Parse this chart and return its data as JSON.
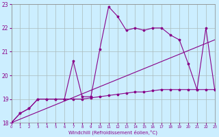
{
  "xlabel": "Windchill (Refroidissement éolien,°C)",
  "bg_color": "#cceeff",
  "grid_color": "#aabbbb",
  "line_color": "#880088",
  "xlim": [
    0,
    23
  ],
  "ylim": [
    18,
    23
  ],
  "xticks": [
    0,
    1,
    2,
    3,
    4,
    5,
    6,
    7,
    8,
    9,
    10,
    11,
    12,
    13,
    14,
    15,
    16,
    17,
    18,
    19,
    20,
    21,
    22,
    23
  ],
  "yticks": [
    18,
    19,
    20,
    21,
    22,
    23
  ],
  "series1_x": [
    0,
    1,
    2,
    3,
    4,
    5,
    6,
    7,
    8,
    9,
    10,
    11,
    12,
    13,
    14,
    15,
    16,
    17,
    18,
    19,
    20,
    21,
    22,
    23
  ],
  "series1_y": [
    18.0,
    18.4,
    18.6,
    19.0,
    19.0,
    19.0,
    19.0,
    20.6,
    19.1,
    19.1,
    21.1,
    22.9,
    22.5,
    21.9,
    22.0,
    21.9,
    22.0,
    22.0,
    21.7,
    21.5,
    20.5,
    19.4,
    22.0,
    19.4
  ],
  "series2_x": [
    0,
    1,
    2,
    3,
    4,
    5,
    6,
    7,
    8,
    9,
    10,
    11,
    12,
    13,
    14,
    15,
    16,
    17,
    18,
    19,
    20,
    21,
    22,
    23
  ],
  "series2_y": [
    18.0,
    18.4,
    18.6,
    19.0,
    19.0,
    19.0,
    19.0,
    19.0,
    19.0,
    19.05,
    19.1,
    19.15,
    19.2,
    19.25,
    19.3,
    19.3,
    19.35,
    19.4,
    19.4,
    19.4,
    19.4,
    19.4,
    19.4,
    19.4
  ],
  "series3_x": [
    0,
    23
  ],
  "series3_y": [
    18.0,
    21.5
  ]
}
